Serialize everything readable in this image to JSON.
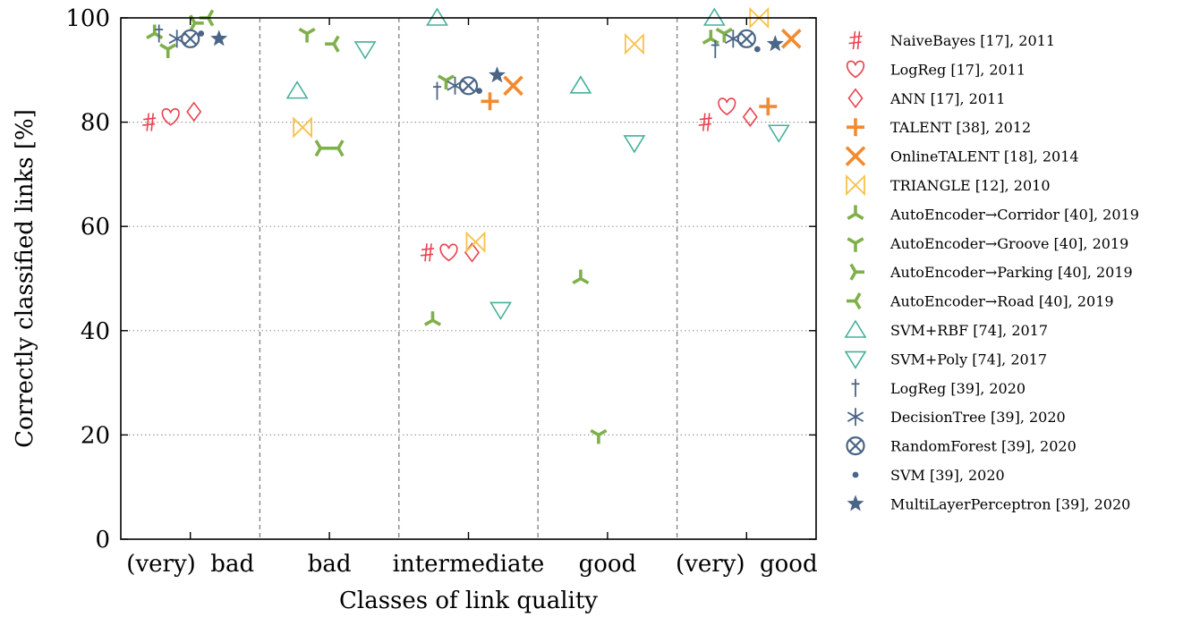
{
  "chart_data": {
    "type": "scatter",
    "xlabel": "Classes of link quality",
    "ylabel": "Correctly classified links [%]",
    "categories": [
      "(very)  bad",
      "bad",
      "intermediate",
      "good",
      "(very)  good"
    ],
    "ylim": [
      0,
      100
    ],
    "yticks": [
      0,
      20,
      40,
      60,
      80,
      100
    ],
    "grid": "horizontal dotted",
    "legend_position": "right",
    "series": [
      {
        "name": "NaiveBayes [17], 2011",
        "marker": "sharp",
        "color": "#e8434f",
        "points": [
          [
            0,
            80
          ],
          [
            2,
            55
          ],
          [
            4,
            80
          ]
        ]
      },
      {
        "name": "LogReg [17], 2011",
        "marker": "heart",
        "color": "#e8434f",
        "points": [
          [
            0,
            81
          ],
          [
            2,
            55
          ],
          [
            4,
            83
          ]
        ]
      },
      {
        "name": "ANN [17], 2011",
        "marker": "diamond",
        "color": "#e8434f",
        "points": [
          [
            0,
            82
          ],
          [
            2,
            55
          ],
          [
            4,
            81
          ]
        ]
      },
      {
        "name": "TALENT [38], 2012",
        "marker": "plus",
        "color": "#f28a30",
        "points": [
          [
            2,
            84
          ],
          [
            4,
            83
          ]
        ]
      },
      {
        "name": "OnlineTALENT [18], 2014",
        "marker": "cross",
        "color": "#f28a30",
        "points": [
          [
            2,
            87
          ],
          [
            4,
            96
          ]
        ]
      },
      {
        "name": "TRIANGLE [12], 2010",
        "marker": "bowtie",
        "color": "#f7c24a",
        "points": [
          [
            1,
            79
          ],
          [
            2,
            57
          ],
          [
            3,
            95
          ],
          [
            4,
            100
          ]
        ]
      },
      {
        "name": "AutoEncoder→Corridor [40], 2019",
        "marker": "tri-down",
        "color": "#7fb04b",
        "points": [
          [
            0,
            97
          ],
          [
            2,
            42
          ],
          [
            3,
            50
          ],
          [
            4,
            96
          ]
        ]
      },
      {
        "name": "AutoEncoder→Groove [40], 2019",
        "marker": "tri-up",
        "color": "#7fb04b",
        "points": [
          [
            0,
            94
          ],
          [
            1,
            97
          ],
          [
            2,
            88
          ],
          [
            3,
            20
          ],
          [
            4,
            97
          ]
        ]
      },
      {
        "name": "AutoEncoder→Parking [40], 2019",
        "marker": "tri-left",
        "color": "#7fb04b",
        "points": [
          [
            0,
            99
          ],
          [
            1,
            75
          ]
        ]
      },
      {
        "name": "AutoEncoder→Road [40], 2019",
        "marker": "tri-right",
        "color": "#7fb04b",
        "points": [
          [
            0,
            100
          ],
          [
            1,
            95
          ],
          [
            1,
            75
          ]
        ]
      },
      {
        "name": "SVM+RBF [74], 2017",
        "marker": "triangle-up",
        "color": "#45b09a",
        "points": [
          [
            1,
            86
          ],
          [
            2,
            100
          ],
          [
            3,
            87
          ],
          [
            4,
            100
          ]
        ]
      },
      {
        "name": "SVM+Poly [74], 2017",
        "marker": "triangle-down",
        "color": "#45b09a",
        "points": [
          [
            1,
            94
          ],
          [
            2,
            44
          ],
          [
            3,
            76
          ],
          [
            4,
            78
          ]
        ]
      },
      {
        "name": "LogReg [39], 2020",
        "marker": "dagger",
        "color": "#4a6586",
        "points": [
          [
            0,
            97
          ],
          [
            2,
            86
          ],
          [
            4,
            94
          ]
        ]
      },
      {
        "name": "DecisionTree [39], 2020",
        "marker": "asterisk",
        "color": "#4a6586",
        "points": [
          [
            0,
            96
          ],
          [
            2,
            87
          ],
          [
            4,
            96
          ]
        ]
      },
      {
        "name": "RandomForest [39], 2020",
        "marker": "otimes",
        "color": "#4a6586",
        "points": [
          [
            0,
            96
          ],
          [
            2,
            87
          ],
          [
            4,
            96
          ]
        ]
      },
      {
        "name": "SVM [39], 2020",
        "marker": "dot",
        "color": "#4a6586",
        "points": [
          [
            0,
            97
          ],
          [
            2,
            86
          ],
          [
            4,
            94
          ]
        ]
      },
      {
        "name": "MultiLayerPerceptron [39], 2020",
        "marker": "star",
        "color": "#4a6586",
        "points": [
          [
            0,
            96
          ],
          [
            2,
            89
          ],
          [
            4,
            95
          ]
        ]
      }
    ]
  }
}
